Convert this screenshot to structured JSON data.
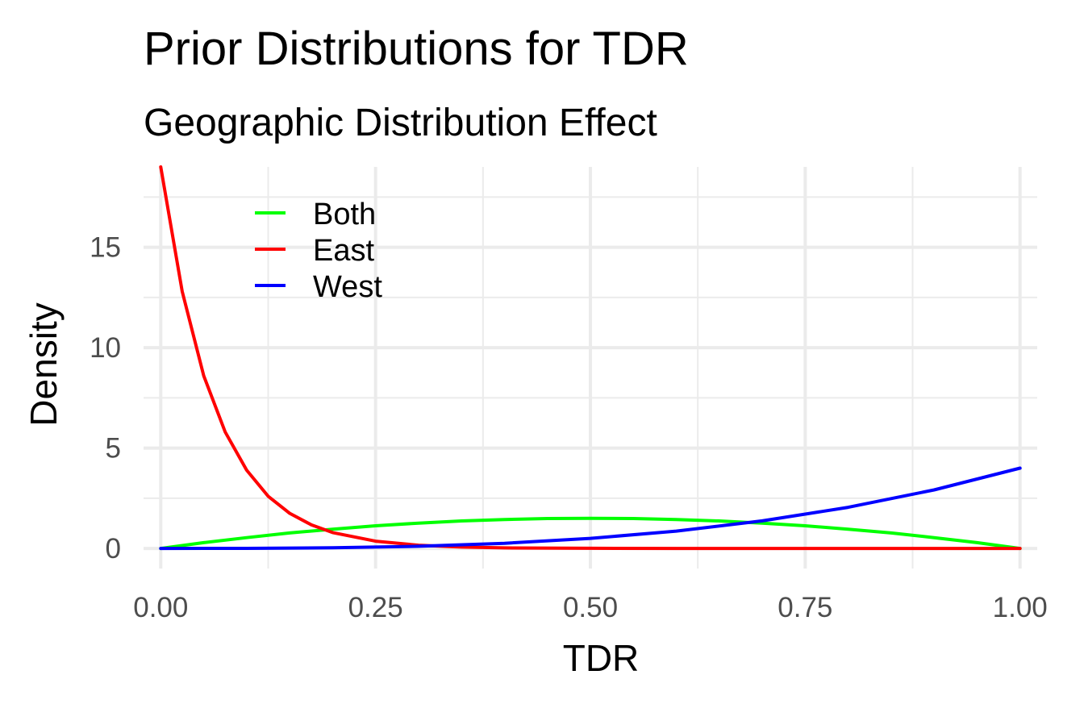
{
  "chart_data": {
    "type": "line",
    "title": "Prior Distributions for TDR",
    "subtitle": "Geographic Distribution Effect",
    "xlabel": "TDR",
    "ylabel": "Density",
    "xlim": [
      -0.02,
      1.02
    ],
    "ylim": [
      -1.0,
      19.0
    ],
    "x_ticks": [
      0,
      0.25,
      0.5,
      0.75,
      1.0
    ],
    "x_tick_labels": [
      "0.00",
      "0.25",
      "0.50",
      "0.75",
      "1.00"
    ],
    "x_minor_ticks": [
      0.125,
      0.375,
      0.625,
      0.875
    ],
    "y_ticks": [
      0,
      5,
      10,
      15
    ],
    "y_tick_labels": [
      "0",
      "5",
      "10",
      "15"
    ],
    "y_minor_ticks": [
      2.5,
      7.5,
      12.5,
      17.5
    ],
    "grid": true,
    "legend_position": "top-left",
    "series": [
      {
        "name": "Both",
        "color": "#00ff00",
        "x": [
          0,
          0.05,
          0.1,
          0.15,
          0.2,
          0.25,
          0.3,
          0.35,
          0.4,
          0.45,
          0.5,
          0.55,
          0.6,
          0.65,
          0.7,
          0.75,
          0.8,
          0.85,
          0.9,
          0.95,
          1.0
        ],
        "y": [
          0,
          0.29,
          0.54,
          0.77,
          0.96,
          1.13,
          1.26,
          1.37,
          1.44,
          1.49,
          1.5,
          1.49,
          1.44,
          1.37,
          1.26,
          1.13,
          0.96,
          0.77,
          0.54,
          0.29,
          0
        ]
      },
      {
        "name": "East",
        "color": "#ff0000",
        "x": [
          0,
          0.025,
          0.05,
          0.075,
          0.1,
          0.125,
          0.15,
          0.175,
          0.2,
          0.25,
          0.3,
          0.35,
          0.4,
          0.5,
          0.6,
          0.7,
          0.8,
          0.9,
          1.0
        ],
        "y": [
          19.0,
          12.8,
          8.6,
          5.8,
          3.9,
          2.6,
          1.75,
          1.18,
          0.79,
          0.36,
          0.16,
          0.07,
          0.03,
          0.01,
          0,
          0,
          0,
          0,
          0
        ]
      },
      {
        "name": "West",
        "color": "#0000ff",
        "x": [
          0,
          0.1,
          0.2,
          0.3,
          0.4,
          0.5,
          0.6,
          0.7,
          0.8,
          0.9,
          1.0
        ],
        "y": [
          0,
          0.004,
          0.032,
          0.108,
          0.256,
          0.5,
          0.864,
          1.372,
          2.048,
          2.916,
          4.0
        ]
      }
    ]
  }
}
